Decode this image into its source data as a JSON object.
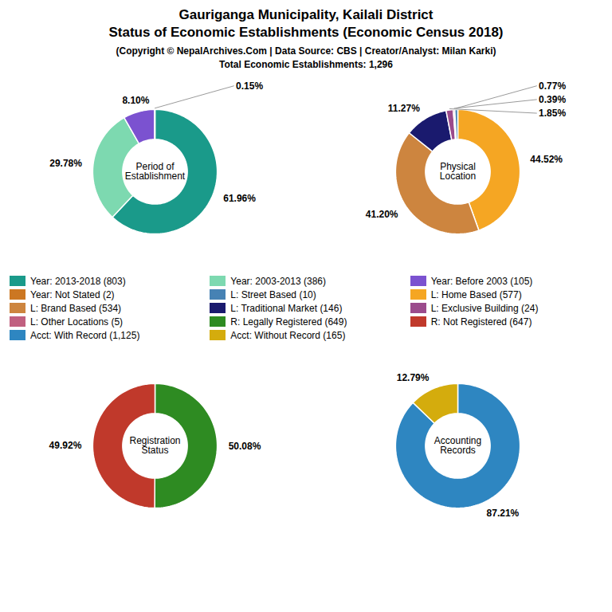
{
  "title": "Gauriganga Municipality, Kailali District\nStatus of Economic Establishments (Economic Census 2018)",
  "subtitle": "(Copyright © NepalArchives.Com | Data Source: CBS | Creator/Analyst: Milan Karki)\nTotal Economic Establishments: 1,296",
  "series": [
    {
      "name": "Year: 2013-2018 (803)",
      "color": "#1a9a8a"
    },
    {
      "name": "Year: Not Stated (2)",
      "color": "#cc7722"
    },
    {
      "name": "L: Brand Based (534)",
      "color": "#CD853F"
    },
    {
      "name": "L: Other Locations (5)",
      "color": "#C06080"
    },
    {
      "name": "Acct: With Record (1,125)",
      "color": "#2E86C1"
    },
    {
      "name": "Year: 2003-2013 (386)",
      "color": "#7dd9b0"
    },
    {
      "name": "L: Street Based (10)",
      "color": "#4682B4"
    },
    {
      "name": "L: Traditional Market (146)",
      "color": "#1a1a6e"
    },
    {
      "name": "R: Legally Registered (649)",
      "color": "#2E8B22"
    },
    {
      "name": "Acct: Without Record (165)",
      "color": "#D4AC0D"
    },
    {
      "name": "Year: Before 2003 (105)",
      "color": "#7B52D0"
    },
    {
      "name": "L: Home Based (577)",
      "color": "#F5A623"
    },
    {
      "name": "L: Exclusive Building (24)",
      "color": "#9B4B8C"
    },
    {
      "name": "R: Not Registered (647)",
      "color": "#C0392B"
    }
  ],
  "chart_data": [
    {
      "type": "pie",
      "title": "Period of\nEstablishment",
      "values": [
        61.96,
        29.78,
        8.1,
        0.15
      ],
      "value_labels": [
        "61.96%",
        "29.78%",
        "8.10%",
        "0.15%"
      ],
      "colors": [
        "#1a9a8a",
        "#7dd9b0",
        "#7B52D0",
        "#cc7722"
      ],
      "data_labels": true
    },
    {
      "type": "pie",
      "title": "Physical\nLocation",
      "values": [
        44.52,
        41.2,
        11.27,
        1.85,
        0.39,
        0.77
      ],
      "value_labels": [
        "44.52%",
        "41.20%",
        "11.27%",
        "1.85%",
        "0.39%",
        "0.77%"
      ],
      "colors": [
        "#F5A623",
        "#CD853F",
        "#1a1a6e",
        "#9B4B8C",
        "#C06080",
        "#4682B4"
      ],
      "data_labels": true
    },
    {
      "type": "pie",
      "title": "Registration\nStatus",
      "values": [
        50.08,
        49.92
      ],
      "value_labels": [
        "50.08%",
        "49.92%"
      ],
      "colors": [
        "#2E8B22",
        "#C0392B"
      ],
      "data_labels": true
    },
    {
      "type": "pie",
      "title": "Accounting\nRecords",
      "values": [
        87.21,
        12.79
      ],
      "value_labels": [
        "87.21%",
        "12.79%"
      ],
      "colors": [
        "#2E86C1",
        "#D4AC0D"
      ],
      "data_labels": true
    }
  ]
}
